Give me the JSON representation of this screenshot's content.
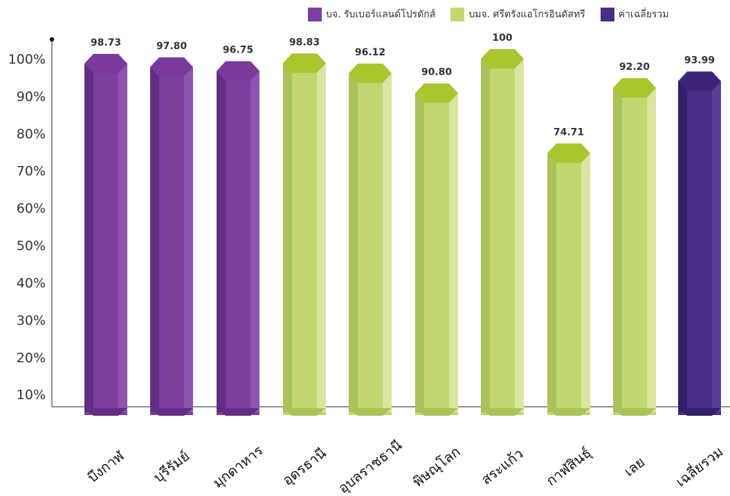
{
  "chart_data": {
    "type": "bar",
    "categories": [
      "บึงกาฬ",
      "บุรีรัมย์",
      "มุกดาหาร",
      "อุดรธานี",
      "อุบลราชธานี",
      "พิษณุโลก",
      "สระแก้ว",
      "กาฬสินธุ์",
      "เลย",
      "เฉลี่ยรวม"
    ],
    "values": [
      98.73,
      97.8,
      96.75,
      98.83,
      96.12,
      90.8,
      100,
      74.71,
      92.2,
      93.99
    ],
    "value_labels": [
      "98.73",
      "97.80",
      "96.75",
      "98.83",
      "96.12",
      "90.80",
      "100",
      "74.71",
      "92.20",
      "93.99"
    ],
    "groups": [
      0,
      0,
      0,
      1,
      1,
      1,
      1,
      1,
      1,
      2
    ],
    "legend": [
      "บจ. รับเบอร์แลนด์โปรดักส์",
      "บมจ. ศรีตรังแอโกรอินดัสทรี",
      "ค่าเฉลี่ยรวม"
    ],
    "legend_placement": "top-right",
    "y_ticks": [
      "10%",
      "20%",
      "30%",
      "40%",
      "50%",
      "60%",
      "70%",
      "80%",
      "90%",
      "100%"
    ],
    "ylim": [
      0,
      100
    ],
    "grid": false,
    "title": "",
    "xlabel": "",
    "ylabel": "",
    "colors": {
      "group0": {
        "body": "#7B3F9E",
        "left": "#632D84",
        "right": "#8E55AE",
        "cap": "#7A3A9C"
      },
      "group1": {
        "body": "#C0D86F",
        "left": "#A9C35A",
        "right": "#D8E6A0",
        "cap": "#A8C62D"
      },
      "group2": {
        "body": "#4A2D86",
        "left": "#33206A",
        "right": "#5A3D99",
        "cap": "#3B2478"
      }
    }
  }
}
